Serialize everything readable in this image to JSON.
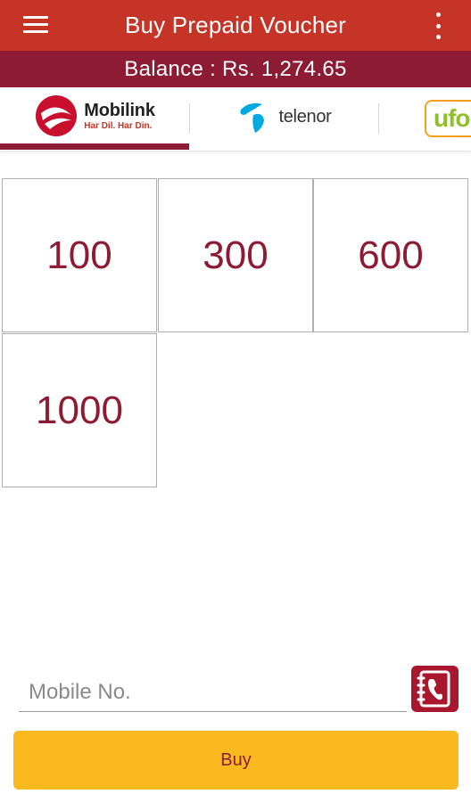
{
  "header": {
    "title": "Buy Prepaid Voucher",
    "menu_icon": "hamburger-menu-icon",
    "more_icon": "more-vertical-icon"
  },
  "balance": {
    "text": "Balance : Rs. 1,274.65"
  },
  "operators": {
    "selected": "Mobilink",
    "tabs": [
      {
        "name": "Mobilink",
        "tagline": "Har Dil. Har Din."
      },
      {
        "name": "telenor"
      },
      {
        "name": "ufo"
      }
    ]
  },
  "vouchers": {
    "amounts": [
      "100",
      "300",
      "600",
      "1000"
    ]
  },
  "mobile": {
    "placeholder": "Mobile No.",
    "value": "",
    "contact_icon": "contact-book-icon"
  },
  "actions": {
    "buy_label": "Buy"
  },
  "colors": {
    "app_bar": "#c63427",
    "balance_bar": "#8e1b34",
    "accent": "#8e1b34",
    "buy_button": "#fbb920"
  }
}
